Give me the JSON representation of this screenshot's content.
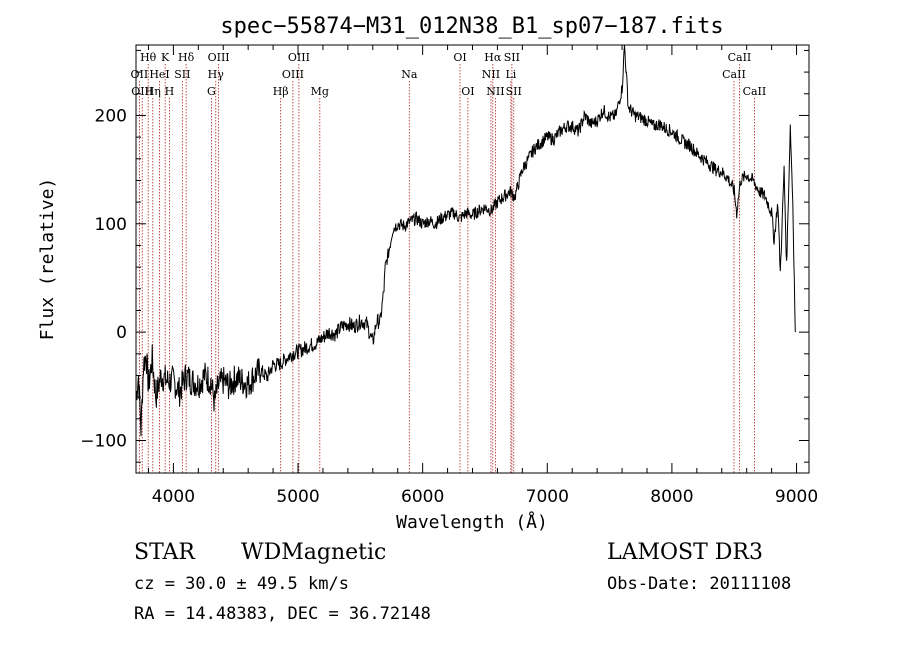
{
  "chart_data": {
    "type": "line",
    "title": "spec−55874−M31_012N38_B1_sp07−187.fits",
    "xlabel": "Wavelength (Å)",
    "ylabel": "Flux (relative)",
    "xlim": [
      3700,
      9100
    ],
    "ylim": [
      -130,
      265
    ],
    "x_ticks": [
      4000,
      5000,
      6000,
      7000,
      8000,
      9000
    ],
    "y_ticks": [
      -100,
      0,
      100,
      200
    ],
    "grid": false,
    "series": [
      {
        "name": "flux",
        "x": [
          3700,
          3720,
          3740,
          3760,
          3780,
          3800,
          3830,
          3860,
          3900,
          3950,
          4000,
          4050,
          4100,
          4150,
          4200,
          4250,
          4300,
          4330,
          4360,
          4400,
          4450,
          4500,
          4550,
          4600,
          4650,
          4700,
          4750,
          4800,
          4850,
          4900,
          4950,
          5000,
          5050,
          5100,
          5150,
          5200,
          5250,
          5300,
          5350,
          5400,
          5450,
          5500,
          5550,
          5600,
          5630,
          5660,
          5690,
          5700,
          5730,
          5760,
          5800,
          5850,
          5900,
          5950,
          6000,
          6050,
          6100,
          6150,
          6200,
          6250,
          6300,
          6350,
          6400,
          6450,
          6500,
          6550,
          6600,
          6650,
          6700,
          6740,
          6800,
          6850,
          6900,
          6950,
          7000,
          7050,
          7100,
          7150,
          7200,
          7250,
          7300,
          7350,
          7400,
          7450,
          7500,
          7550,
          7600,
          7620,
          7650,
          7700,
          7750,
          7800,
          7850,
          7900,
          7950,
          8000,
          8050,
          8100,
          8150,
          8200,
          8250,
          8300,
          8350,
          8400,
          8450,
          8500,
          8520,
          8550,
          8600,
          8650,
          8700,
          8750,
          8800,
          8820,
          8850,
          8870,
          8900,
          8920,
          8950,
          8970,
          8990
        ],
        "y": [
          -60,
          -40,
          -90,
          -30,
          -20,
          -50,
          -25,
          -60,
          -40,
          -45,
          -45,
          -55,
          -40,
          -45,
          -48,
          -40,
          -45,
          -65,
          -50,
          -45,
          -50,
          -42,
          -45,
          -48,
          -40,
          -35,
          -42,
          -30,
          -30,
          -25,
          -20,
          -18,
          -15,
          -12,
          -10,
          -5,
          0,
          -2,
          5,
          8,
          5,
          10,
          8,
          -10,
          10,
          10,
          40,
          60,
          75,
          95,
          100,
          98,
          102,
          105,
          100,
          103,
          100,
          105,
          108,
          110,
          105,
          110,
          108,
          112,
          115,
          112,
          120,
          125,
          130,
          125,
          150,
          160,
          170,
          175,
          180,
          178,
          185,
          190,
          190,
          185,
          200,
          192,
          195,
          205,
          198,
          200,
          225,
          265,
          208,
          200,
          198,
          195,
          190,
          192,
          188,
          185,
          180,
          175,
          172,
          165,
          160,
          155,
          150,
          148,
          142,
          130,
          110,
          140,
          145,
          140,
          130,
          125,
          110,
          85,
          120,
          55,
          150,
          60,
          190,
          120,
          0
        ]
      }
    ],
    "line_markers": [
      {
        "label": "Hθ",
        "x": 3798,
        "row": 1
      },
      {
        "label": "K",
        "x": 3934,
        "row": 1
      },
      {
        "label": "Hδ",
        "x": 4102,
        "row": 1
      },
      {
        "label": "OIII",
        "x": 4363,
        "row": 1
      },
      {
        "label": "OIII",
        "x": 5007,
        "row": 1
      },
      {
        "label": "OI",
        "x": 6300,
        "row": 1
      },
      {
        "label": "Hα",
        "x": 6563,
        "row": 1
      },
      {
        "label": "SII",
        "x": 6716,
        "row": 1
      },
      {
        "label": "CaII",
        "x": 8542,
        "row": 1
      },
      {
        "label": "OII",
        "x": 3727,
        "row": 2
      },
      {
        "label": "HeI",
        "x": 3889,
        "row": 2
      },
      {
        "label": "SII",
        "x": 4072,
        "row": 2
      },
      {
        "label": "Hγ",
        "x": 4340,
        "row": 2
      },
      {
        "label": "OIII",
        "x": 4959,
        "row": 2
      },
      {
        "label": "Na",
        "x": 5893,
        "row": 2
      },
      {
        "label": "NII",
        "x": 6548,
        "row": 2
      },
      {
        "label": "Li",
        "x": 6708,
        "row": 2
      },
      {
        "label": "CaII",
        "x": 8498,
        "row": 2
      },
      {
        "label": "OIII",
        "x": 3750,
        "row": 3
      },
      {
        "label": "Hη",
        "x": 3835,
        "row": 3
      },
      {
        "label": "H",
        "x": 3968,
        "row": 3
      },
      {
        "label": "G",
        "x": 4305,
        "row": 3
      },
      {
        "label": "Hβ",
        "x": 4861,
        "row": 3
      },
      {
        "label": "Mg",
        "x": 5175,
        "row": 3
      },
      {
        "label": "OI",
        "x": 6363,
        "row": 3
      },
      {
        "label": "NII",
        "x": 6584,
        "row": 3
      },
      {
        "label": "SII",
        "x": 6731,
        "row": 3
      },
      {
        "label": "CaII",
        "x": 8662,
        "row": 3
      }
    ]
  },
  "info": {
    "class": "STAR",
    "subclass": "WDMagnetic",
    "survey": "LAMOST DR3",
    "cz": "cz = 30.0 ± 49.5 km/s",
    "obs_date": "Obs-Date: 20111108",
    "coords": "RA =  14.48383, DEC =  36.72148"
  }
}
